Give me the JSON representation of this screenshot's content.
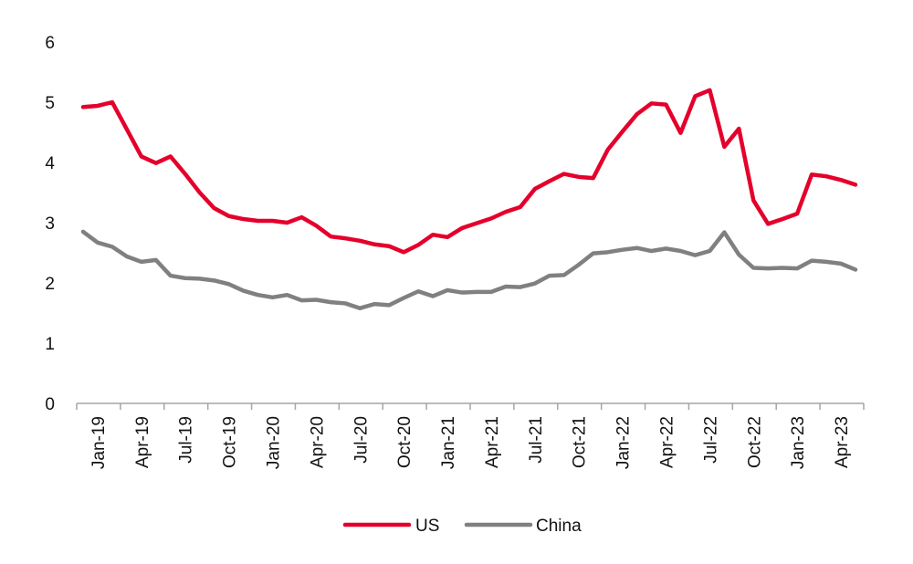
{
  "chart_data": {
    "type": "line",
    "title": "",
    "xlabel": "",
    "ylabel": "",
    "ylim": [
      0,
      6
    ],
    "yticks": [
      0,
      1,
      2,
      3,
      4,
      5,
      6
    ],
    "xtick_labels": [
      "Jan-19",
      "Apr-19",
      "Jul-19",
      "Oct-19",
      "Jan-20",
      "Apr-20",
      "Jul-20",
      "Oct-20",
      "Jan-21",
      "Apr-21",
      "Jul-21",
      "Oct-21",
      "Jan-22",
      "Apr-22",
      "Jul-22",
      "Oct-22",
      "Jan-23",
      "Apr-23"
    ],
    "grid": false,
    "legend_position": "bottom-center",
    "series": [
      {
        "name": "US",
        "color": "#e4002b",
        "values": [
          4.92,
          4.94,
          5.0,
          4.55,
          4.1,
          3.99,
          4.1,
          3.81,
          3.5,
          3.24,
          3.11,
          3.06,
          3.03,
          3.03,
          3.0,
          3.09,
          2.95,
          2.77,
          2.74,
          2.7,
          2.64,
          2.61,
          2.51,
          2.63,
          2.8,
          2.76,
          2.91,
          2.99,
          3.07,
          3.18,
          3.26,
          3.56,
          3.69,
          3.81,
          3.76,
          3.74,
          4.21,
          4.51,
          4.8,
          4.98,
          4.96,
          4.49,
          5.1,
          5.2,
          4.26,
          4.56,
          3.37,
          2.98,
          3.06,
          3.15,
          3.8,
          3.77,
          3.71,
          3.63
        ]
      },
      {
        "name": "China",
        "color": "#808080",
        "values": [
          2.85,
          2.67,
          2.6,
          2.44,
          2.35,
          2.38,
          2.12,
          2.08,
          2.07,
          2.04,
          1.98,
          1.87,
          1.8,
          1.76,
          1.8,
          1.71,
          1.72,
          1.68,
          1.66,
          1.58,
          1.65,
          1.63,
          1.75,
          1.86,
          1.78,
          1.88,
          1.84,
          1.85,
          1.85,
          1.94,
          1.93,
          1.99,
          2.12,
          2.13,
          2.3,
          2.49,
          2.51,
          2.55,
          2.58,
          2.53,
          2.57,
          2.53,
          2.46,
          2.53,
          2.84,
          2.47,
          2.25,
          2.24,
          2.25,
          2.24,
          2.37,
          2.35,
          2.32,
          2.22
        ]
      }
    ]
  }
}
